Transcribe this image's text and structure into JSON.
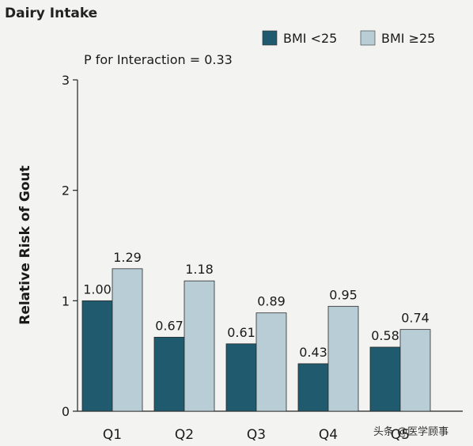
{
  "chart_data": {
    "type": "bar",
    "title": "Dairy Intake",
    "annotation": "P for Interaction = 0.33",
    "xlabel": "",
    "ylabel": "Relative Risk of Gout",
    "ylim": [
      0,
      3
    ],
    "yticks": [
      0,
      1,
      2,
      3
    ],
    "categories": [
      "Q1",
      "Q2",
      "Q3",
      "Q4",
      "Q5"
    ],
    "series": [
      {
        "name": "BMI <25",
        "color": "#1f5a6e",
        "values": [
          1.0,
          0.67,
          0.61,
          0.43,
          0.58
        ],
        "labels": [
          "1.00",
          "0.67",
          "0.61",
          "0.43",
          "0.58"
        ]
      },
      {
        "name": "BMI ≥25",
        "color": "#b8cdd6",
        "values": [
          1.29,
          1.18,
          0.89,
          0.95,
          0.74
        ],
        "labels": [
          "1.29",
          "1.18",
          "0.89",
          "0.95",
          "0.74"
        ]
      }
    ],
    "legend_position": "top-right",
    "grid": false
  },
  "watermark": "头条 @医学顾事"
}
